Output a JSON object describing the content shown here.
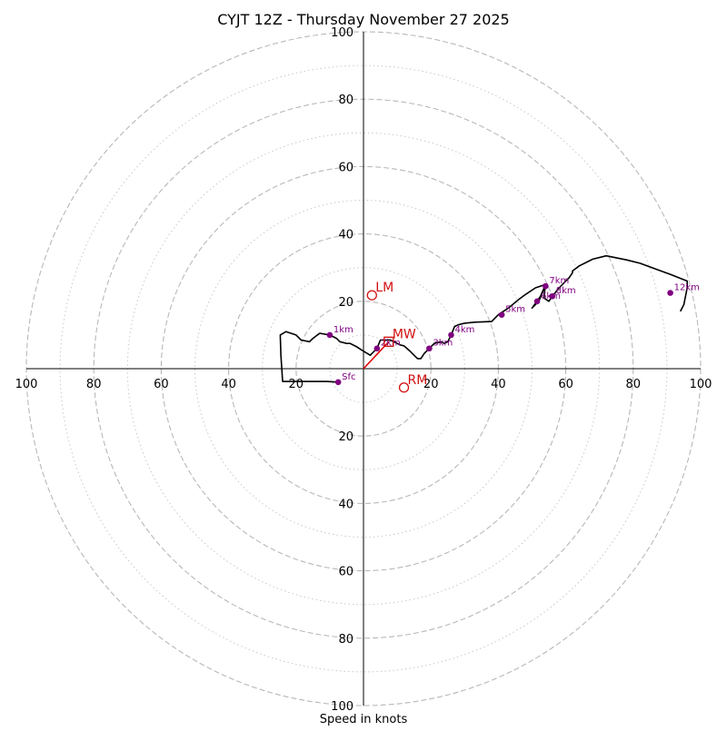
{
  "chart_data": {
    "type": "hodograph",
    "title": "CYJT 12Z - Thursday November 27 2025",
    "xlabel": "Speed in knots",
    "range": [
      -100,
      100
    ],
    "ring_major": [
      20,
      40,
      60,
      80,
      100
    ],
    "ring_minor": [
      10,
      30,
      50,
      70,
      90
    ],
    "tick_values": [
      20,
      40,
      60,
      80,
      100
    ],
    "tick_labels": {
      "left": [
        "20",
        "40",
        "60",
        "80",
        "100"
      ],
      "right": [
        "20",
        "40",
        "60",
        "80",
        "100"
      ],
      "top": [
        "20",
        "40",
        "60",
        "80",
        "100"
      ],
      "bottom": [
        "20",
        "40",
        "60",
        "80",
        "100"
      ]
    },
    "profile": [
      [
        -7.5,
        -4
      ],
      [
        -11,
        -3.8
      ],
      [
        -24,
        -3.8
      ],
      [
        -24.5,
        4
      ],
      [
        -24.7,
        10
      ],
      [
        -23,
        11
      ],
      [
        -20,
        10
      ],
      [
        -18.5,
        8.5
      ],
      [
        -16,
        8
      ],
      [
        -15,
        9
      ],
      [
        -13,
        10.5
      ],
      [
        -10,
        10
      ],
      [
        -8,
        9
      ],
      [
        -7,
        8
      ],
      [
        -5,
        7.5
      ],
      [
        -4,
        7.5
      ],
      [
        -2,
        6.5
      ],
      [
        -0.5,
        5.5
      ],
      [
        2,
        4
      ],
      [
        4,
        6
      ],
      [
        5,
        8.5
      ],
      [
        8,
        8.5
      ],
      [
        10,
        7.5
      ],
      [
        11,
        7
      ],
      [
        12,
        6.8
      ],
      [
        14,
        5
      ],
      [
        15,
        4
      ],
      [
        16,
        3
      ],
      [
        17,
        3
      ],
      [
        18,
        4.5
      ],
      [
        19.5,
        6
      ],
      [
        21,
        7.5
      ],
      [
        23,
        8
      ],
      [
        24,
        7.5
      ],
      [
        25,
        8
      ],
      [
        26,
        10
      ],
      [
        27,
        12.5
      ],
      [
        28,
        13
      ],
      [
        30,
        13.5
      ],
      [
        33,
        13.8
      ],
      [
        38,
        14
      ],
      [
        40,
        16
      ],
      [
        43,
        18
      ],
      [
        46,
        20.5
      ],
      [
        48,
        22
      ],
      [
        51,
        24
      ],
      [
        54,
        25
      ],
      [
        52.5,
        21.5
      ],
      [
        50,
        18
      ],
      [
        52,
        20
      ],
      [
        53,
        22.5
      ],
      [
        53.5,
        23.5
      ],
      [
        54,
        25
      ],
      [
        53.5,
        21
      ],
      [
        55,
        20
      ],
      [
        56,
        21.5
      ],
      [
        58,
        24
      ],
      [
        60,
        26
      ],
      [
        61,
        27
      ],
      [
        62,
        28.5
      ],
      [
        62,
        29
      ],
      [
        64,
        30.5
      ],
      [
        68,
        32.5
      ],
      [
        72,
        33.5
      ],
      [
        78,
        32.3
      ],
      [
        82,
        31.3
      ],
      [
        86,
        29.8
      ],
      [
        91,
        28
      ],
      [
        96,
        26
      ],
      [
        96,
        24
      ],
      [
        95,
        19
      ],
      [
        94,
        17
      ]
    ],
    "height_markers": [
      {
        "label": "Sfc",
        "u": -7.5,
        "v": -4
      },
      {
        "label": "1km",
        "u": -10,
        "v": 10
      },
      {
        "label": "2km",
        "u": 4,
        "v": 6
      },
      {
        "label": "3km",
        "u": 19.5,
        "v": 6
      },
      {
        "label": "4km",
        "u": 26,
        "v": 10
      },
      {
        "label": "5km",
        "u": 41,
        "v": 16
      },
      {
        "label": "6km",
        "u": 51.5,
        "v": 20
      },
      {
        "label": "7km",
        "u": 54,
        "v": 24.5
      },
      {
        "label": "8km",
        "u": 56,
        "v": 21.5
      },
      {
        "label": "12km",
        "u": 91,
        "v": 22.5
      }
    ],
    "motion_markers": [
      {
        "label": "LM",
        "u": 2.5,
        "v": 21.8
      },
      {
        "label": "RM",
        "u": 12,
        "v": -5.6
      },
      {
        "label": "MW",
        "u": 7.5,
        "v": 8
      }
    ],
    "mean_wind_vector": {
      "u": 7.5,
      "v": 8
    }
  }
}
